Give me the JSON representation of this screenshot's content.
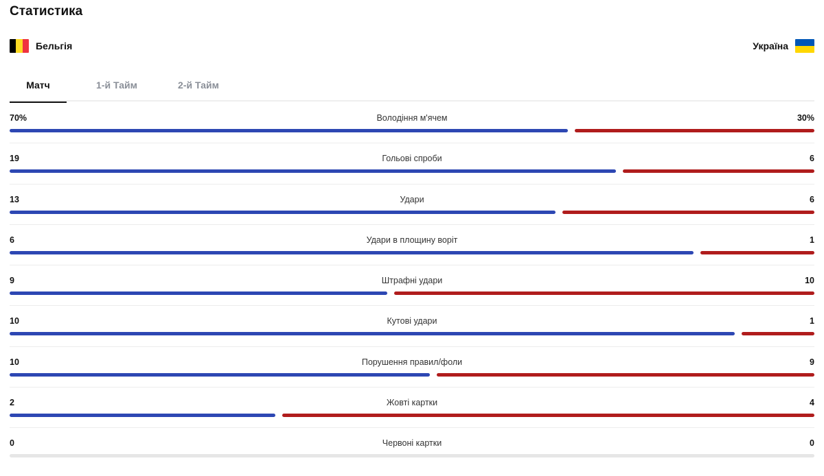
{
  "title": "Статистика",
  "home_team": {
    "name": "Бельгія",
    "flag_colors": [
      "#000000",
      "#FDDA24",
      "#EF3340"
    ]
  },
  "away_team": {
    "name": "Україна",
    "flag_colors": [
      "#0057B7",
      "#FFD700"
    ]
  },
  "tabs": [
    {
      "label": "Матч",
      "active": true
    },
    {
      "label": "1-й Тайм",
      "active": false
    },
    {
      "label": "2-й Тайм",
      "active": false
    }
  ],
  "colors": {
    "home_bar": "#2d47b3",
    "away_bar": "#b01c1c",
    "empty_bar": "#e6e6e6"
  },
  "stats": [
    {
      "label": "Володіння м'ячем",
      "home": "70%",
      "away": "30%",
      "home_value": 70,
      "away_value": 30
    },
    {
      "label": "Гольові спроби",
      "home": "19",
      "away": "6",
      "home_value": 19,
      "away_value": 6
    },
    {
      "label": "Удари",
      "home": "13",
      "away": "6",
      "home_value": 13,
      "away_value": 6
    },
    {
      "label": "Удари в площину воріт",
      "home": "6",
      "away": "1",
      "home_value": 6,
      "away_value": 1
    },
    {
      "label": "Штрафні удари",
      "home": "9",
      "away": "10",
      "home_value": 9,
      "away_value": 10
    },
    {
      "label": "Кутові удари",
      "home": "10",
      "away": "1",
      "home_value": 10,
      "away_value": 1
    },
    {
      "label": "Порушення правил/фоли",
      "home": "10",
      "away": "9",
      "home_value": 10,
      "away_value": 9
    },
    {
      "label": "Жовті картки",
      "home": "2",
      "away": "4",
      "home_value": 2,
      "away_value": 4
    },
    {
      "label": "Червоні картки",
      "home": "0",
      "away": "0",
      "home_value": 0,
      "away_value": 0
    }
  ]
}
